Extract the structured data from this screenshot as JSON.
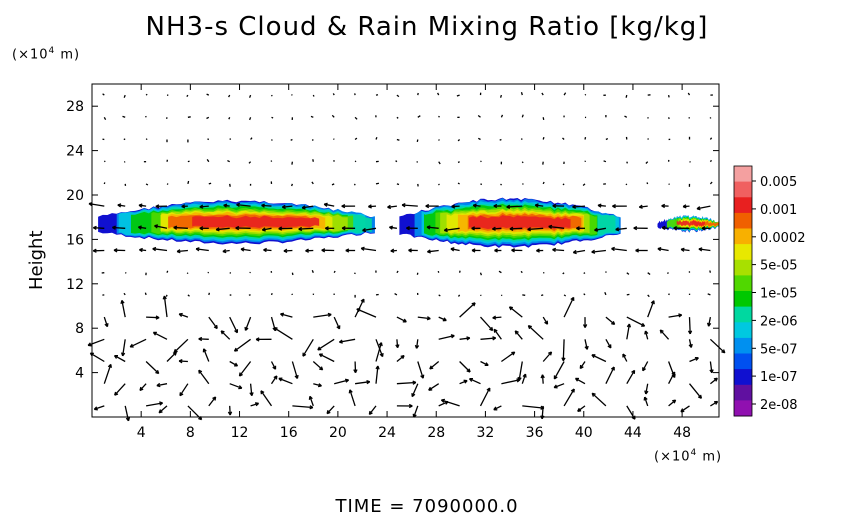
{
  "chart_data": {
    "type": "heatmap",
    "title": "NH3-s Cloud & Rain Mixing Ratio [kg/kg]",
    "ylabel": "Height",
    "x_unit_prefix": "(×10",
    "x_unit_exp": "4",
    "x_unit_suffix": " m)",
    "y_unit_prefix": "(×10",
    "y_unit_exp": "4",
    "y_unit_suffix": " m)",
    "xlim": [
      0,
      51
    ],
    "ylim": [
      0,
      30
    ],
    "x_ticks": [
      4,
      8,
      12,
      16,
      20,
      24,
      28,
      32,
      36,
      40,
      44,
      48
    ],
    "y_ticks": [
      4,
      8,
      12,
      16,
      20,
      24,
      28
    ],
    "colorbar": {
      "labels": [
        "0.005",
        "0.001",
        "0.0002",
        "5e-05",
        "1e-05",
        "2e-06",
        "5e-07",
        "1e-07",
        "2e-08"
      ],
      "colors": [
        "#f4a0a0",
        "#f06060",
        "#e82020",
        "#f06000",
        "#f8b000",
        "#e8e800",
        "#a8e000",
        "#50d800",
        "#00c800",
        "#00d8a0",
        "#00c8e0",
        "#0090f0",
        "#0050f0",
        "#1010d0",
        "#6010a0",
        "#9010b0"
      ]
    },
    "cloud_layer": {
      "description_hidden": false,
      "segments": [
        {
          "x_start": 0.5,
          "x_end": 23,
          "y_bottom": 15.5,
          "y_top": 19.6
        },
        {
          "x_start": 25,
          "x_end": 43,
          "y_bottom": 15.2,
          "y_top": 19.8
        },
        {
          "x_start": 46,
          "x_end": 51,
          "y_bottom": 16.6,
          "y_top": 18.2
        }
      ]
    },
    "time_label": "TIME  =  7090000.0"
  }
}
